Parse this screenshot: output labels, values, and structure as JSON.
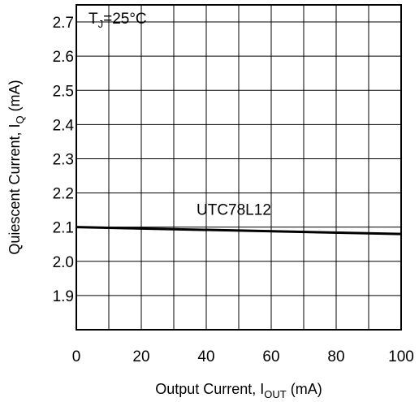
{
  "chart_data": {
    "type": "line",
    "title": "",
    "condition_label": {
      "main": "T",
      "sub": "J",
      "rest": "=25°C"
    },
    "xlabel": {
      "main": "Output Current, I",
      "sub": "OUT",
      "rest": " (mA)"
    },
    "ylabel": {
      "main": "Quiescent Current, I",
      "sub": "Q",
      "rest": " (mA)"
    },
    "xlim": [
      0,
      100
    ],
    "ylim": [
      1.8,
      2.75
    ],
    "x_ticks": [
      0,
      20,
      40,
      60,
      80,
      100
    ],
    "x_tick_labels": [
      "0",
      "20",
      "40",
      "60",
      "80",
      "100"
    ],
    "x_grid": [
      0,
      10,
      20,
      30,
      40,
      50,
      60,
      70,
      80,
      90,
      100
    ],
    "y_ticks": [
      1.9,
      2.0,
      2.1,
      2.2,
      2.3,
      2.4,
      2.5,
      2.6,
      2.7
    ],
    "y_tick_labels": [
      "1.9",
      "2.0",
      "2.1",
      "2.2",
      "2.3",
      "2.4",
      "2.5",
      "2.6",
      "2.7"
    ],
    "grid": true,
    "series": [
      {
        "name": "UTC78L12",
        "x": [
          0,
          100
        ],
        "y": [
          2.1,
          2.08
        ]
      }
    ]
  }
}
